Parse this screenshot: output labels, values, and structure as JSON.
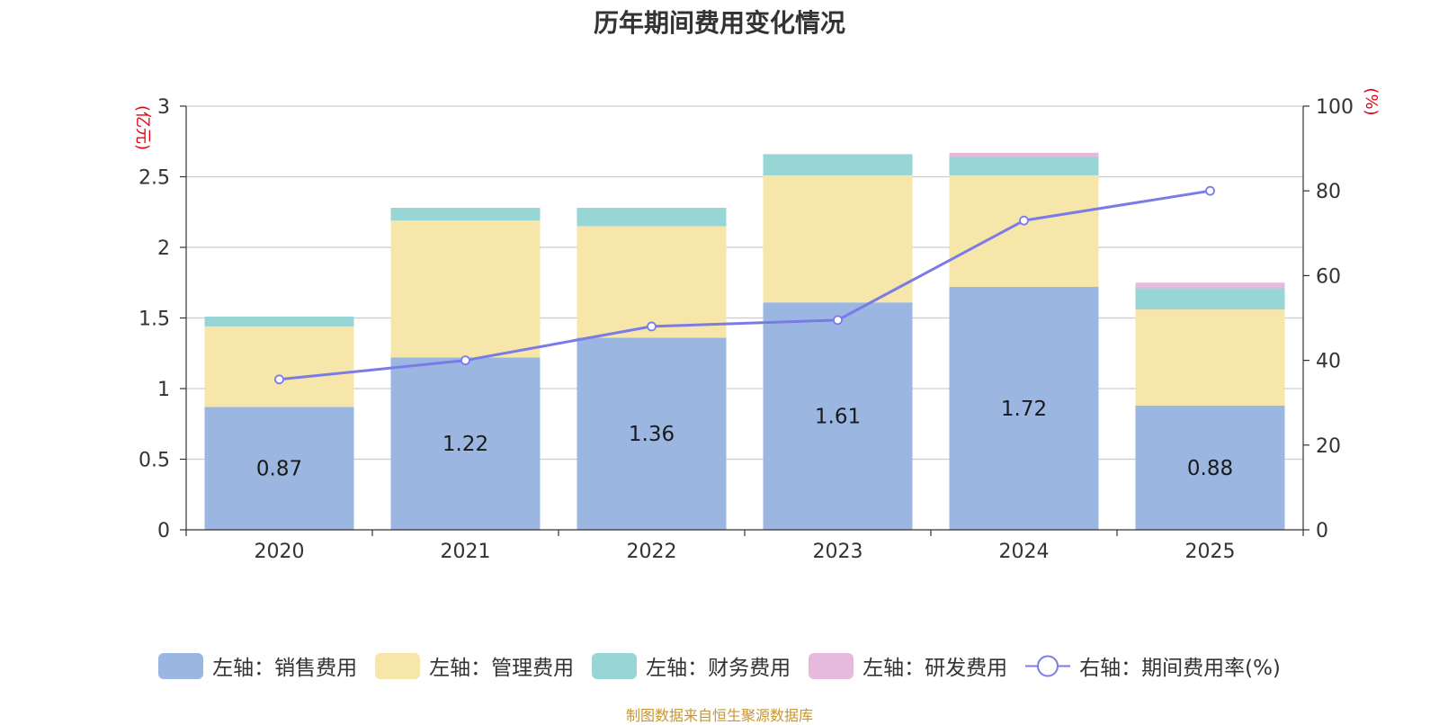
{
  "chart_data": {
    "type": "bar",
    "title": "历年期间费用变化情况",
    "categories": [
      "2020",
      "2021",
      "2022",
      "2023",
      "2024",
      "2025"
    ],
    "series": [
      {
        "name": "左轴：销售费用",
        "axis": "left",
        "color": "#9bb7e1",
        "values": [
          0.87,
          1.22,
          1.36,
          1.61,
          1.72,
          0.88
        ],
        "show_labels": true
      },
      {
        "name": "左轴：管理费用",
        "axis": "left",
        "color": "#f7e6a9",
        "values": [
          0.57,
          0.97,
          0.79,
          0.9,
          0.79,
          0.68
        ],
        "show_labels": false
      },
      {
        "name": "左轴：财务费用",
        "axis": "left",
        "color": "#98d5d5",
        "values": [
          0.07,
          0.09,
          0.13,
          0.15,
          0.13,
          0.15
        ],
        "show_labels": false
      },
      {
        "name": "左轴：研发费用",
        "axis": "left",
        "color": "#e7b9dc",
        "values": [
          0.0,
          0.0,
          0.0,
          0.0,
          0.03,
          0.04
        ],
        "show_labels": false
      }
    ],
    "line_series": {
      "name": "右轴：期间费用率(%)",
      "axis": "right",
      "color": "#7b7be8",
      "values": [
        35.5,
        40,
        48,
        49.5,
        73,
        80
      ]
    },
    "left_axis": {
      "unit": "(亿元)",
      "ylim": [
        0,
        3
      ],
      "ticks": [
        0,
        0.5,
        1,
        1.5,
        2,
        2.5,
        3
      ],
      "tick_labels": [
        "0",
        "0.5",
        "1",
        "1.5",
        "2",
        "2.5",
        "3"
      ]
    },
    "right_axis": {
      "unit": "(%)",
      "ylim": [
        0,
        100
      ],
      "ticks": [
        0,
        20,
        40,
        60,
        80,
        100
      ],
      "tick_labels": [
        "0",
        "20",
        "40",
        "60",
        "80",
        "100"
      ]
    },
    "grid": true,
    "legend_position": "bottom"
  },
  "source_text": "制图数据来自恒生聚源数据库"
}
